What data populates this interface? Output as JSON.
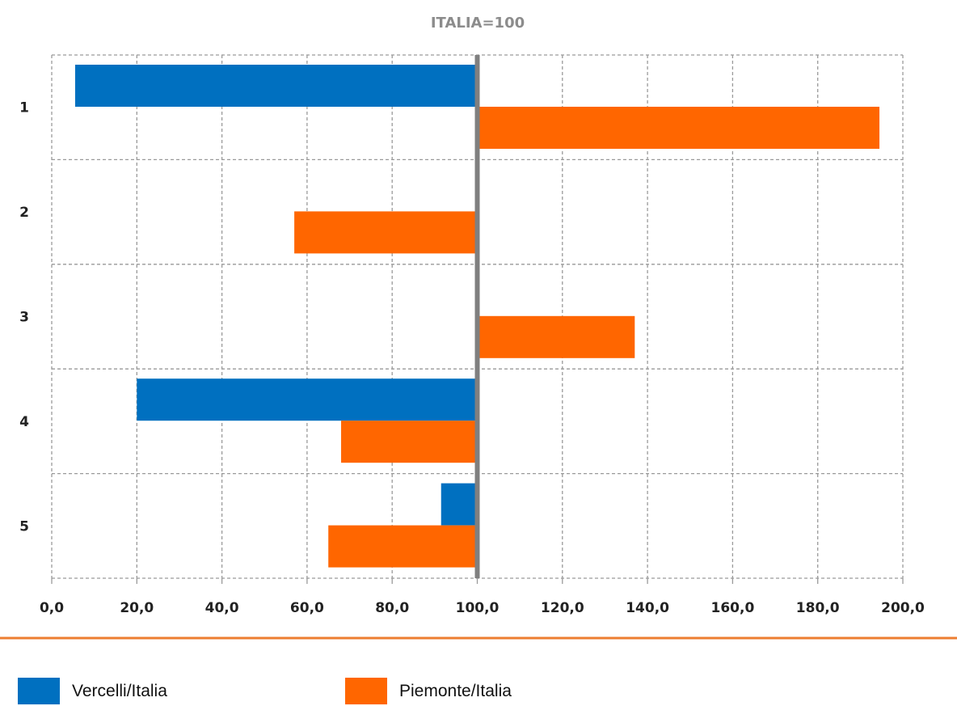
{
  "chart_data": {
    "type": "bar",
    "orientation": "horizontal",
    "title": "ITALIA=100",
    "categories": [
      "1",
      "2",
      "3",
      "4",
      "5"
    ],
    "series": [
      {
        "name": "Vercelli/Italia",
        "color": "#0070c0",
        "values": [
          5.5,
          null,
          null,
          20.0,
          91.5
        ]
      },
      {
        "name": "Piemonte/Italia",
        "color": "#ff6600",
        "values": [
          194.5,
          57.0,
          137.0,
          68.0,
          65.0
        ]
      }
    ],
    "baseline": 100,
    "baseline_color": "#7f7f7f",
    "xlim": [
      0,
      200
    ],
    "x_ticks": [
      "0,0",
      "20,0",
      "40,0",
      "60,0",
      "80,0",
      "100,0",
      "120,0",
      "140,0",
      "160,0",
      "180,0",
      "200,0"
    ],
    "grid": true,
    "legend_position": "bottom"
  },
  "divider_color": "#ed7d31"
}
